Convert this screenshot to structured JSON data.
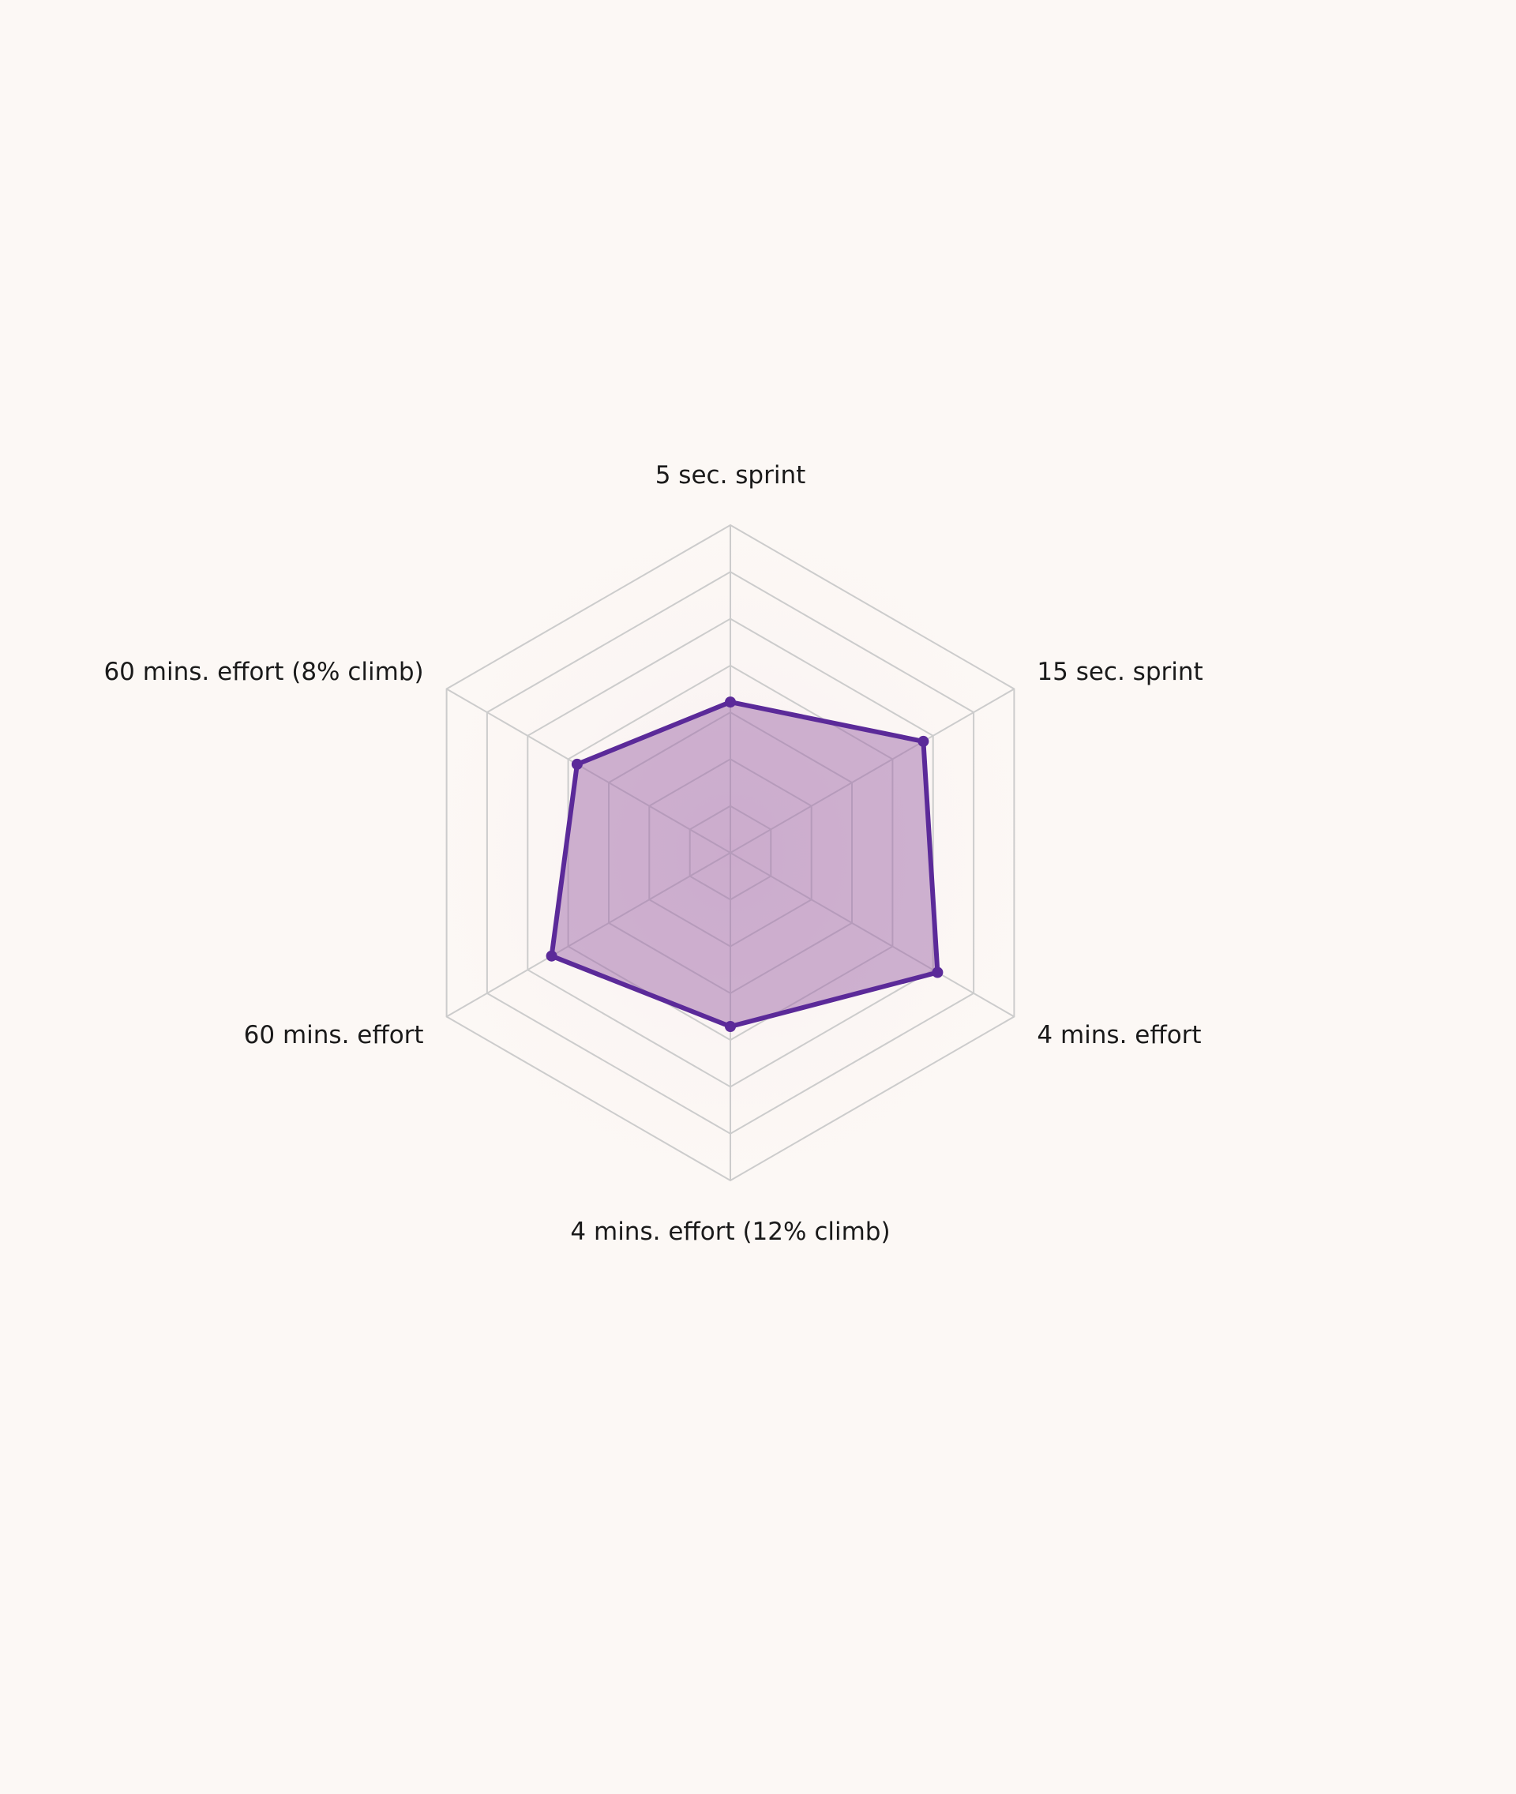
{
  "chart_data": {
    "type": "radar",
    "title": "",
    "axes": [
      "5 sec. sprint",
      "15 sec. sprint",
      "4 mins. effort",
      "4 mins. effort (12% climb)",
      "60 mins. effort",
      "60 mins. effort (8% climb)"
    ],
    "series": [
      {
        "values": [
          46,
          68,
          73,
          53,
          63,
          54
        ]
      }
    ],
    "range": [
      0,
      100
    ],
    "grid_levels": 7,
    "grid": true,
    "legend": "none",
    "colors": {
      "line": "#5b2a99",
      "fill": "#9f6aaa",
      "grid": "#cccccc",
      "background": "#fcf8f5"
    }
  }
}
